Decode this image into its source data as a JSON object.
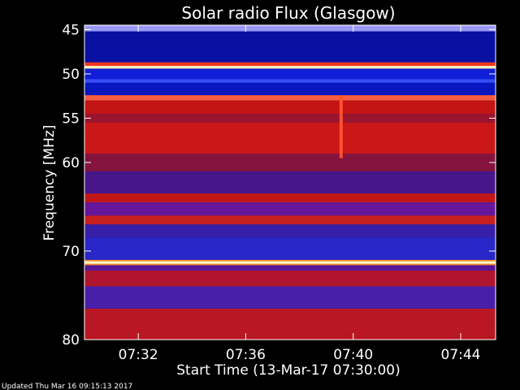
{
  "chart_data": {
    "type": "heatmap",
    "title": "Solar radio Flux (Glasgow)",
    "xlabel": "Start Time (13-Mar-17 07:30:00)",
    "ylabel": "Frequency [MHz]",
    "footer": "Updated Thu Mar 16 09:15:13 2017",
    "x_range_minutes": [
      0,
      15.3
    ],
    "y_range_mhz": [
      44.5,
      80
    ],
    "x_ticks": [
      {
        "label": "07:32",
        "minute": 2
      },
      {
        "label": "07:36",
        "minute": 6
      },
      {
        "label": "07:40",
        "minute": 10
      },
      {
        "label": "07:44",
        "minute": 14
      }
    ],
    "y_ticks": [
      {
        "label": "45",
        "mhz": 45
      },
      {
        "label": "50",
        "mhz": 50
      },
      {
        "label": "55",
        "mhz": 55
      },
      {
        "label": "60",
        "mhz": 60
      },
      {
        "label": "70",
        "mhz": 70
      },
      {
        "label": "80",
        "mhz": 80
      }
    ],
    "bands": [
      {
        "from": 44.5,
        "to": 45.2,
        "color": "#a0a0ff"
      },
      {
        "from": 45.2,
        "to": 48.7,
        "color": "#0a10a8"
      },
      {
        "from": 48.7,
        "to": 49.1,
        "color": "#ff3a20"
      },
      {
        "from": 49.1,
        "to": 49.4,
        "color": "#ffe890"
      },
      {
        "from": 49.4,
        "to": 50.6,
        "color": "#1020e0"
      },
      {
        "from": 50.6,
        "to": 51.0,
        "color": "#3a50ff"
      },
      {
        "from": 51.0,
        "to": 52.4,
        "color": "#0818c8"
      },
      {
        "from": 52.4,
        "to": 53.0,
        "color": "#ff6040"
      },
      {
        "from": 53.0,
        "to": 54.5,
        "color": "#cc1515"
      },
      {
        "from": 54.5,
        "to": 55.5,
        "color": "#a01530"
      },
      {
        "from": 55.5,
        "to": 59.0,
        "color": "#d41818"
      },
      {
        "from": 59.0,
        "to": 61.0,
        "color": "#8a1540"
      },
      {
        "from": 61.0,
        "to": 63.5,
        "color": "#4a1890"
      },
      {
        "from": 63.5,
        "to": 64.5,
        "color": "#c81818"
      },
      {
        "from": 64.5,
        "to": 66.0,
        "color": "#6a18a0"
      },
      {
        "from": 66.0,
        "to": 67.0,
        "color": "#d02020"
      },
      {
        "from": 67.0,
        "to": 68.5,
        "color": "#3a20b0"
      },
      {
        "from": 68.5,
        "to": 71.0,
        "color": "#2a28d0"
      },
      {
        "from": 71.0,
        "to": 71.6,
        "color": "#ff9030"
      },
      {
        "from": 71.6,
        "to": 72.2,
        "color": "#5a18a0"
      },
      {
        "from": 72.2,
        "to": 74.0,
        "color": "#b81530"
      },
      {
        "from": 74.0,
        "to": 76.5,
        "color": "#4a20b0"
      },
      {
        "from": 76.5,
        "to": 80.0,
        "color": "#c01825"
      }
    ],
    "bright_lines_mhz": [
      49.25,
      71.3
    ],
    "burst": {
      "minute": 9.55,
      "from_mhz": 52.5,
      "to_mhz": 59.5,
      "color": "#ff5030"
    }
  }
}
